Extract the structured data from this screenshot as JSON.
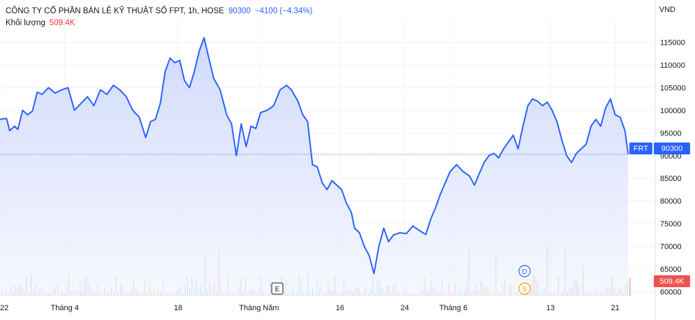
{
  "legend": {
    "title": "CÔNG TY CỔ PHẦN BÁN LẺ KỸ THUẬT SỐ FPT, 1h, HOSE",
    "last": "90300",
    "change": "−4100 (−4.34%)",
    "volume_label": "Khối lượng",
    "volume_value": "509.4K"
  },
  "axis_unit": "VND",
  "price_badge": {
    "symbol": "FRT",
    "value": "90300"
  },
  "volume_badge": "509.4K",
  "event_markers": [
    {
      "letter": "E",
      "color": "#131722",
      "kind": "earnings"
    },
    {
      "letter": "D",
      "color": "#2962ff",
      "kind": "dividend"
    },
    {
      "letter": "S",
      "color": "#ff9800",
      "kind": "split"
    }
  ],
  "colors": {
    "line": "#2962ff",
    "area_top": "#c7d3fb",
    "area_bottom": "#f2f5fe",
    "vol_up": "#26a69a",
    "vol_down": "#ef5350",
    "grid": "#f0f3fa"
  },
  "chart_data": {
    "type": "area",
    "y_ticks": [
      60000,
      65000,
      70000,
      75000,
      80000,
      85000,
      90000,
      95000,
      100000,
      105000,
      110000,
      115000
    ],
    "y_tick_labels": [
      "60000",
      "65000",
      "70000",
      "75000",
      "80000",
      "85000",
      "90000",
      "95000",
      "100000",
      "105000",
      "110000",
      "115000"
    ],
    "ylim": [
      59000,
      120000
    ],
    "x_ticks": [
      {
        "label": "22",
        "index": 0
      },
      {
        "label": "Tháng 4",
        "index": 4
      },
      {
        "label": "18",
        "index": 11
      },
      {
        "label": "Tháng Năm",
        "index": 16
      },
      {
        "label": "16",
        "index": 21
      },
      {
        "label": "24",
        "index": 25
      },
      {
        "label": "Tháng 6",
        "index": 28
      },
      {
        "label": "13",
        "index": 34
      },
      {
        "label": "21",
        "index": 38
      }
    ],
    "xlim": [
      0,
      39
    ],
    "price": [
      [
        0,
        98000
      ],
      [
        0.4,
        98200
      ],
      [
        0.6,
        95500
      ],
      [
        0.9,
        96500
      ],
      [
        1.1,
        95800
      ],
      [
        1.4,
        100000
      ],
      [
        1.7,
        99000
      ],
      [
        2.0,
        99800
      ],
      [
        2.3,
        104000
      ],
      [
        2.6,
        103500
      ],
      [
        3.0,
        105000
      ],
      [
        3.4,
        103800
      ],
      [
        3.8,
        104500
      ],
      [
        4.2,
        105000
      ],
      [
        4.6,
        100000
      ],
      [
        5.0,
        101500
      ],
      [
        5.4,
        103000
      ],
      [
        5.8,
        101000
      ],
      [
        6.2,
        104500
      ],
      [
        6.6,
        103500
      ],
      [
        7.0,
        105500
      ],
      [
        7.4,
        104500
      ],
      [
        7.8,
        103000
      ],
      [
        8.2,
        100000
      ],
      [
        8.6,
        98500
      ],
      [
        9.0,
        94000
      ],
      [
        9.3,
        97500
      ],
      [
        9.6,
        98000
      ],
      [
        9.9,
        101500
      ],
      [
        10.2,
        108500
      ],
      [
        10.5,
        111500
      ],
      [
        10.8,
        110500
      ],
      [
        11.1,
        111000
      ],
      [
        11.4,
        106500
      ],
      [
        11.7,
        105000
      ],
      [
        12.0,
        108500
      ],
      [
        12.3,
        113000
      ],
      [
        12.6,
        116000
      ],
      [
        12.9,
        111500
      ],
      [
        13.2,
        107000
      ],
      [
        13.6,
        104500
      ],
      [
        14.0,
        99000
      ],
      [
        14.3,
        97000
      ],
      [
        14.6,
        90000
      ],
      [
        14.9,
        97000
      ],
      [
        15.2,
        92000
      ],
      [
        15.5,
        96500
      ],
      [
        15.8,
        96000
      ],
      [
        16.1,
        99500
      ],
      [
        16.5,
        100000
      ],
      [
        16.9,
        101000
      ],
      [
        17.3,
        104500
      ],
      [
        17.7,
        105500
      ],
      [
        18.0,
        104500
      ],
      [
        18.4,
        102000
      ],
      [
        18.7,
        99000
      ],
      [
        19.0,
        97500
      ],
      [
        19.3,
        88000
      ],
      [
        19.6,
        87500
      ],
      [
        19.9,
        84000
      ],
      [
        20.2,
        82500
      ],
      [
        20.5,
        84500
      ],
      [
        20.8,
        83500
      ],
      [
        21.1,
        82500
      ],
      [
        21.4,
        79500
      ],
      [
        21.7,
        77500
      ],
      [
        21.9,
        74000
      ],
      [
        22.2,
        73000
      ],
      [
        22.5,
        70000
      ],
      [
        22.8,
        68000
      ],
      [
        23.1,
        64000
      ],
      [
        23.4,
        70000
      ],
      [
        23.7,
        74000
      ],
      [
        24.0,
        71000
      ],
      [
        24.3,
        72500
      ],
      [
        24.7,
        73000
      ],
      [
        25.1,
        72800
      ],
      [
        25.5,
        74500
      ],
      [
        25.9,
        73500
      ],
      [
        26.3,
        72600
      ],
      [
        26.6,
        76000
      ],
      [
        26.9,
        78500
      ],
      [
        27.2,
        81500
      ],
      [
        27.5,
        84000
      ],
      [
        27.8,
        86500
      ],
      [
        28.2,
        88000
      ],
      [
        28.6,
        86500
      ],
      [
        29.0,
        85500
      ],
      [
        29.3,
        83500
      ],
      [
        29.6,
        86000
      ],
      [
        29.9,
        88500
      ],
      [
        30.2,
        90000
      ],
      [
        30.5,
        90500
      ],
      [
        30.8,
        89500
      ],
      [
        31.1,
        91500
      ],
      [
        31.4,
        93000
      ],
      [
        31.7,
        94500
      ],
      [
        32.0,
        91500
      ],
      [
        32.3,
        96500
      ],
      [
        32.6,
        101000
      ],
      [
        32.9,
        102500
      ],
      [
        33.2,
        102000
      ],
      [
        33.5,
        101000
      ],
      [
        33.8,
        101800
      ],
      [
        34.1,
        100000
      ],
      [
        34.4,
        97500
      ],
      [
        34.7,
        93500
      ],
      [
        35.0,
        90000
      ],
      [
        35.3,
        88500
      ],
      [
        35.6,
        90500
      ],
      [
        35.9,
        91500
      ],
      [
        36.2,
        92500
      ],
      [
        36.5,
        96500
      ],
      [
        36.8,
        98000
      ],
      [
        37.1,
        96500
      ],
      [
        37.4,
        100500
      ],
      [
        37.7,
        102500
      ],
      [
        38.0,
        99000
      ],
      [
        38.3,
        98500
      ],
      [
        38.6,
        95500
      ],
      [
        38.8,
        90300
      ]
    ],
    "volume_ylim": [
      0,
      100000
    ]
  }
}
